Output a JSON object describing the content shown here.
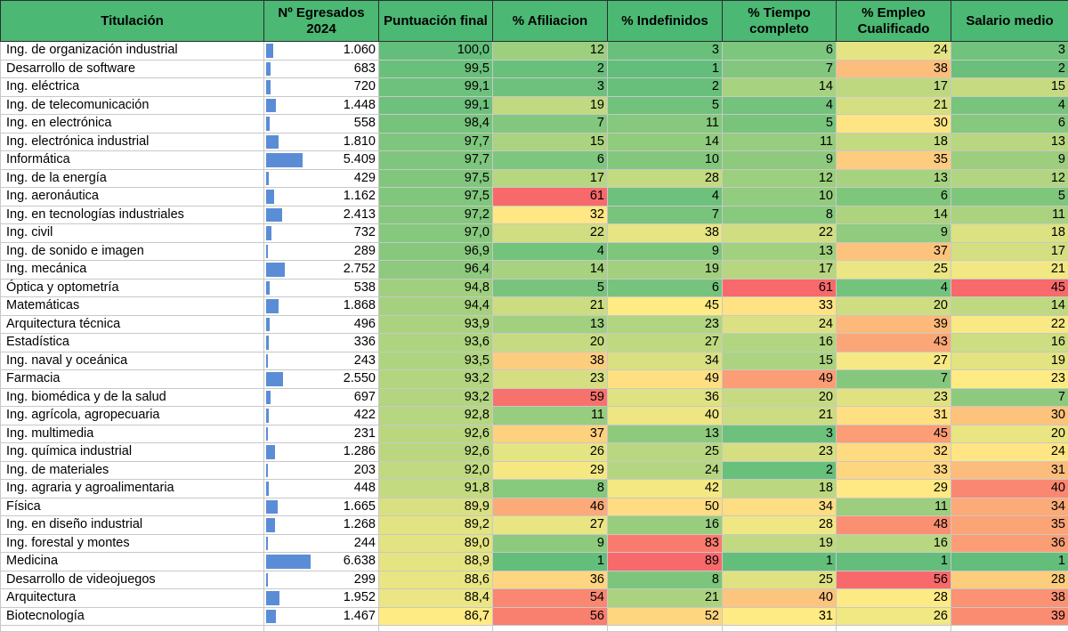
{
  "columns": {
    "titulacion": "Titulación",
    "egresados_line1": "Nº Egresados",
    "egresados_line2": "2024",
    "puntuacion": "Puntuación final",
    "afiliacion": "% Afiliacion",
    "indefinidos": "% Indefinidos",
    "tiempo_line1": "% Tiempo",
    "tiempo_line2": "completo",
    "empleo_line1": "% Empleo",
    "empleo_line2": "Cualificado",
    "salario": "Salario medio"
  },
  "colors": {
    "header": "#4bb874",
    "bar": "#5b8dd6",
    "scale_low": "#63be7b",
    "scale_mid": "#ffeb84",
    "scale_high": "#f8696b"
  },
  "rows": [
    {
      "name": "Ing. de organización industrial",
      "grad": "1.060",
      "score": "100,0",
      "afil": 12,
      "indef": 3,
      "tiempo": 6,
      "empleo": 24,
      "salario": 3
    },
    {
      "name": "Desarrollo de software",
      "grad": "683",
      "score": "99,5",
      "afil": 2,
      "indef": 1,
      "tiempo": 7,
      "empleo": 38,
      "salario": 2
    },
    {
      "name": "Ing. eléctrica",
      "grad": "720",
      "score": "99,1",
      "afil": 3,
      "indef": 2,
      "tiempo": 14,
      "empleo": 17,
      "salario": 15
    },
    {
      "name": "Ing. de telecomunicación",
      "grad": "1.448",
      "score": "99,1",
      "afil": 19,
      "indef": 5,
      "tiempo": 4,
      "empleo": 21,
      "salario": 4
    },
    {
      "name": "Ing. en electrónica",
      "grad": "558",
      "score": "98,4",
      "afil": 7,
      "indef": 11,
      "tiempo": 5,
      "empleo": 30,
      "salario": 6
    },
    {
      "name": "Ing. electrónica industrial",
      "grad": "1.810",
      "score": "97,7",
      "afil": 15,
      "indef": 14,
      "tiempo": 11,
      "empleo": 18,
      "salario": 13
    },
    {
      "name": "Informática",
      "grad": "5.409",
      "score": "97,7",
      "afil": 6,
      "indef": 10,
      "tiempo": 9,
      "empleo": 35,
      "salario": 9
    },
    {
      "name": "Ing. de la energía",
      "grad": "429",
      "score": "97,5",
      "afil": 17,
      "indef": 28,
      "tiempo": 12,
      "empleo": 13,
      "salario": 12
    },
    {
      "name": "Ing. aeronáutica",
      "grad": "1.162",
      "score": "97,5",
      "afil": 61,
      "indef": 4,
      "tiempo": 10,
      "empleo": 6,
      "salario": 5
    },
    {
      "name": "Ing. en tecnologías industriales",
      "grad": "2.413",
      "score": "97,2",
      "afil": 32,
      "indef": 7,
      "tiempo": 8,
      "empleo": 14,
      "salario": 11
    },
    {
      "name": "Ing. civil",
      "grad": "732",
      "score": "97,0",
      "afil": 22,
      "indef": 38,
      "tiempo": 22,
      "empleo": 9,
      "salario": 18
    },
    {
      "name": "Ing. de sonido e imagen",
      "grad": "289",
      "score": "96,9",
      "afil": 4,
      "indef": 9,
      "tiempo": 13,
      "empleo": 37,
      "salario": 17
    },
    {
      "name": "Ing. mecánica",
      "grad": "2.752",
      "score": "96,4",
      "afil": 14,
      "indef": 19,
      "tiempo": 17,
      "empleo": 25,
      "salario": 21
    },
    {
      "name": "Óptica y optometría",
      "grad": "538",
      "score": "94,8",
      "afil": 5,
      "indef": 6,
      "tiempo": 61,
      "empleo": 4,
      "salario": 45
    },
    {
      "name": "Matemáticas",
      "grad": "1.868",
      "score": "94,4",
      "afil": 21,
      "indef": 45,
      "tiempo": 33,
      "empleo": 20,
      "salario": 14
    },
    {
      "name": "Arquitectura técnica",
      "grad": "496",
      "score": "93,9",
      "afil": 13,
      "indef": 23,
      "tiempo": 24,
      "empleo": 39,
      "salario": 22
    },
    {
      "name": "Estadística",
      "grad": "336",
      "score": "93,6",
      "afil": 20,
      "indef": 27,
      "tiempo": 16,
      "empleo": 43,
      "salario": 16
    },
    {
      "name": "Ing. naval y oceánica",
      "grad": "243",
      "score": "93,5",
      "afil": 38,
      "indef": 34,
      "tiempo": 15,
      "empleo": 27,
      "salario": 19
    },
    {
      "name": "Farmacia",
      "grad": "2.550",
      "score": "93,2",
      "afil": 23,
      "indef": 49,
      "tiempo": 49,
      "empleo": 7,
      "salario": 23
    },
    {
      "name": "Ing. biomédica y de la salud",
      "grad": "697",
      "score": "93,2",
      "afil": 59,
      "indef": 36,
      "tiempo": 20,
      "empleo": 23,
      "salario": 7
    },
    {
      "name": "Ing. agrícola, agropecuaria",
      "grad": "422",
      "score": "92,8",
      "afil": 11,
      "indef": 40,
      "tiempo": 21,
      "empleo": 31,
      "salario": 30
    },
    {
      "name": "Ing. multimedia",
      "grad": "231",
      "score": "92,6",
      "afil": 37,
      "indef": 13,
      "tiempo": 3,
      "empleo": 45,
      "salario": 20
    },
    {
      "name": "Ing. química industrial",
      "grad": "1.286",
      "score": "92,6",
      "afil": 26,
      "indef": 25,
      "tiempo": 23,
      "empleo": 32,
      "salario": 24
    },
    {
      "name": "Ing. de materiales",
      "grad": "203",
      "score": "92,0",
      "afil": 29,
      "indef": 24,
      "tiempo": 2,
      "empleo": 33,
      "salario": 31
    },
    {
      "name": "Ing. agraria y agroalimentaria",
      "grad": "448",
      "score": "91,8",
      "afil": 8,
      "indef": 42,
      "tiempo": 18,
      "empleo": 29,
      "salario": 40
    },
    {
      "name": "Física",
      "grad": "1.665",
      "score": "89,9",
      "afil": 46,
      "indef": 50,
      "tiempo": 34,
      "empleo": 11,
      "salario": 34
    },
    {
      "name": "Ing. en diseño industrial",
      "grad": "1.268",
      "score": "89,2",
      "afil": 27,
      "indef": 16,
      "tiempo": 28,
      "empleo": 48,
      "salario": 35
    },
    {
      "name": "Ing. forestal y montes",
      "grad": "244",
      "score": "89,0",
      "afil": 9,
      "indef": 83,
      "tiempo": 19,
      "empleo": 16,
      "salario": 36
    },
    {
      "name": "Medicina",
      "grad": "6.638",
      "score": "88,9",
      "afil": 1,
      "indef": 89,
      "tiempo": 1,
      "empleo": 1,
      "salario": 1
    },
    {
      "name": "Desarrollo de videojuegos",
      "grad": "299",
      "score": "88,6",
      "afil": 36,
      "indef": 8,
      "tiempo": 25,
      "empleo": 56,
      "salario": 28
    },
    {
      "name": "Arquitectura",
      "grad": "1.952",
      "score": "88,4",
      "afil": 54,
      "indef": 21,
      "tiempo": 40,
      "empleo": 28,
      "salario": 38
    },
    {
      "name": "Biotecnología",
      "grad": "1.467",
      "score": "86,7",
      "afil": 56,
      "indef": 52,
      "tiempo": 31,
      "empleo": 26,
      "salario": 39
    }
  ]
}
